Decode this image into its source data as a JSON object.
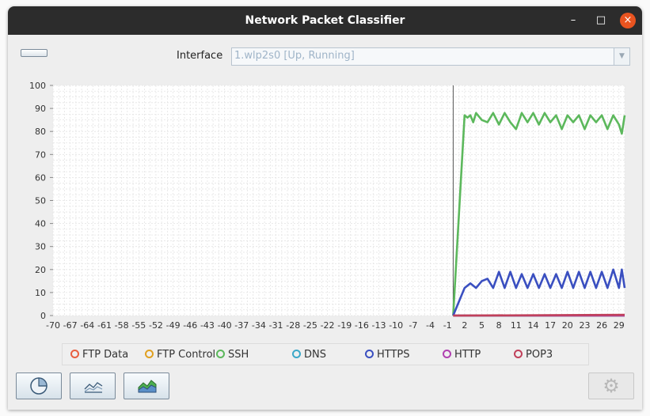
{
  "window": {
    "title": "Network Packet Classifier"
  },
  "titlebar": {
    "minimize_glyph": "–",
    "maximize_glyph": "□",
    "close_glyph": "×"
  },
  "interface": {
    "label": "Interface",
    "value": "1.wlp2s0 [Up, Running]",
    "dropdown_icon": "chevron-down-icon"
  },
  "colors": {
    "ftp_data": "#e85f40",
    "ftp_control": "#e0a020",
    "ssh": "#5cb85c",
    "dns": "#3ba8c8",
    "https": "#3a4fc0",
    "http": "#b040b0",
    "pop3": "#c0405a"
  },
  "chart_data": {
    "type": "line",
    "title": "",
    "xlabel": "",
    "ylabel": "",
    "xlim": [
      -70,
      30
    ],
    "ylim": [
      0,
      100
    ],
    "grid": true,
    "x_ticks": [
      "-70",
      "-67",
      "-64",
      "-61",
      "-58",
      "-55",
      "-52",
      "-49",
      "-46",
      "-43",
      "-40",
      "-37",
      "-34",
      "-31",
      "-28",
      "-25",
      "-22",
      "-19",
      "-16",
      "-13",
      "-10",
      "-7",
      "-4",
      "-1",
      "2",
      "5",
      "8",
      "11",
      "14",
      "17",
      "20",
      "23",
      "26",
      "29"
    ],
    "y_ticks": [
      "0",
      "10",
      "20",
      "30",
      "40",
      "50",
      "60",
      "70",
      "80",
      "90",
      "100"
    ],
    "legend_position": "bottom",
    "series": [
      {
        "name": "FTP Data",
        "color": "#e85f40",
        "x": [
          0,
          30
        ],
        "y": [
          0,
          0
        ]
      },
      {
        "name": "FTP Control",
        "color": "#e0a020",
        "x": [
          0,
          30
        ],
        "y": [
          0,
          0
        ]
      },
      {
        "name": "SSH",
        "color": "#5cb85c",
        "x": [
          0,
          2,
          2.5,
          3,
          3.5,
          4,
          5,
          6,
          7,
          8,
          9,
          10,
          11,
          12,
          13,
          14,
          15,
          16,
          17,
          18,
          19,
          20,
          21,
          22,
          23,
          24,
          25,
          26,
          27,
          28,
          29,
          29.5,
          30
        ],
        "y": [
          0,
          87,
          86,
          87,
          84,
          88,
          85,
          84,
          88,
          83,
          88,
          84,
          81,
          88,
          84,
          88,
          83,
          88,
          84,
          87,
          81,
          87,
          84,
          87,
          81,
          87,
          84,
          87,
          81,
          87,
          83,
          79,
          87
        ]
      },
      {
        "name": "DNS",
        "color": "#3ba8c8",
        "x": [
          0,
          30
        ],
        "y": [
          0,
          0
        ]
      },
      {
        "name": "HTTPS",
        "color": "#3a4fc0",
        "x": [
          0,
          1,
          2,
          3,
          4,
          5,
          6,
          7,
          8,
          9,
          10,
          11,
          12,
          13,
          14,
          15,
          16,
          17,
          18,
          19,
          20,
          21,
          22,
          23,
          24,
          25,
          26,
          27,
          28,
          29,
          29.5,
          30
        ],
        "y": [
          0,
          6,
          12,
          14,
          12,
          15,
          16,
          12,
          19,
          12,
          19,
          12,
          18,
          12,
          18,
          12,
          18,
          12,
          18,
          12,
          19,
          12,
          19,
          12,
          19,
          12,
          19,
          12,
          20,
          12,
          20,
          12
        ]
      },
      {
        "name": "HTTP",
        "color": "#b040b0",
        "x": [
          0,
          30
        ],
        "y": [
          0,
          0
        ]
      },
      {
        "name": "POP3",
        "color": "#c0405a",
        "x": [
          0,
          30
        ],
        "y": [
          0,
          0.3
        ]
      }
    ]
  },
  "legend": [
    {
      "label": "FTP Data",
      "color": "#e85f40"
    },
    {
      "label": "FTP Control",
      "color": "#e0a020"
    },
    {
      "label": "SSH",
      "color": "#5cb85c"
    },
    {
      "label": "DNS",
      "color": "#3ba8c8"
    },
    {
      "label": "HTTPS",
      "color": "#3a4fc0"
    },
    {
      "label": "HTTP",
      "color": "#b040b0"
    },
    {
      "label": "POP3",
      "color": "#c0405a"
    }
  ],
  "toolbar": {
    "pie_icon": "pie-chart-icon",
    "line_icon": "line-chart-icon",
    "area_icon": "area-chart-icon",
    "settings_icon": "gear-icon",
    "settings_glyph": "⚙"
  }
}
